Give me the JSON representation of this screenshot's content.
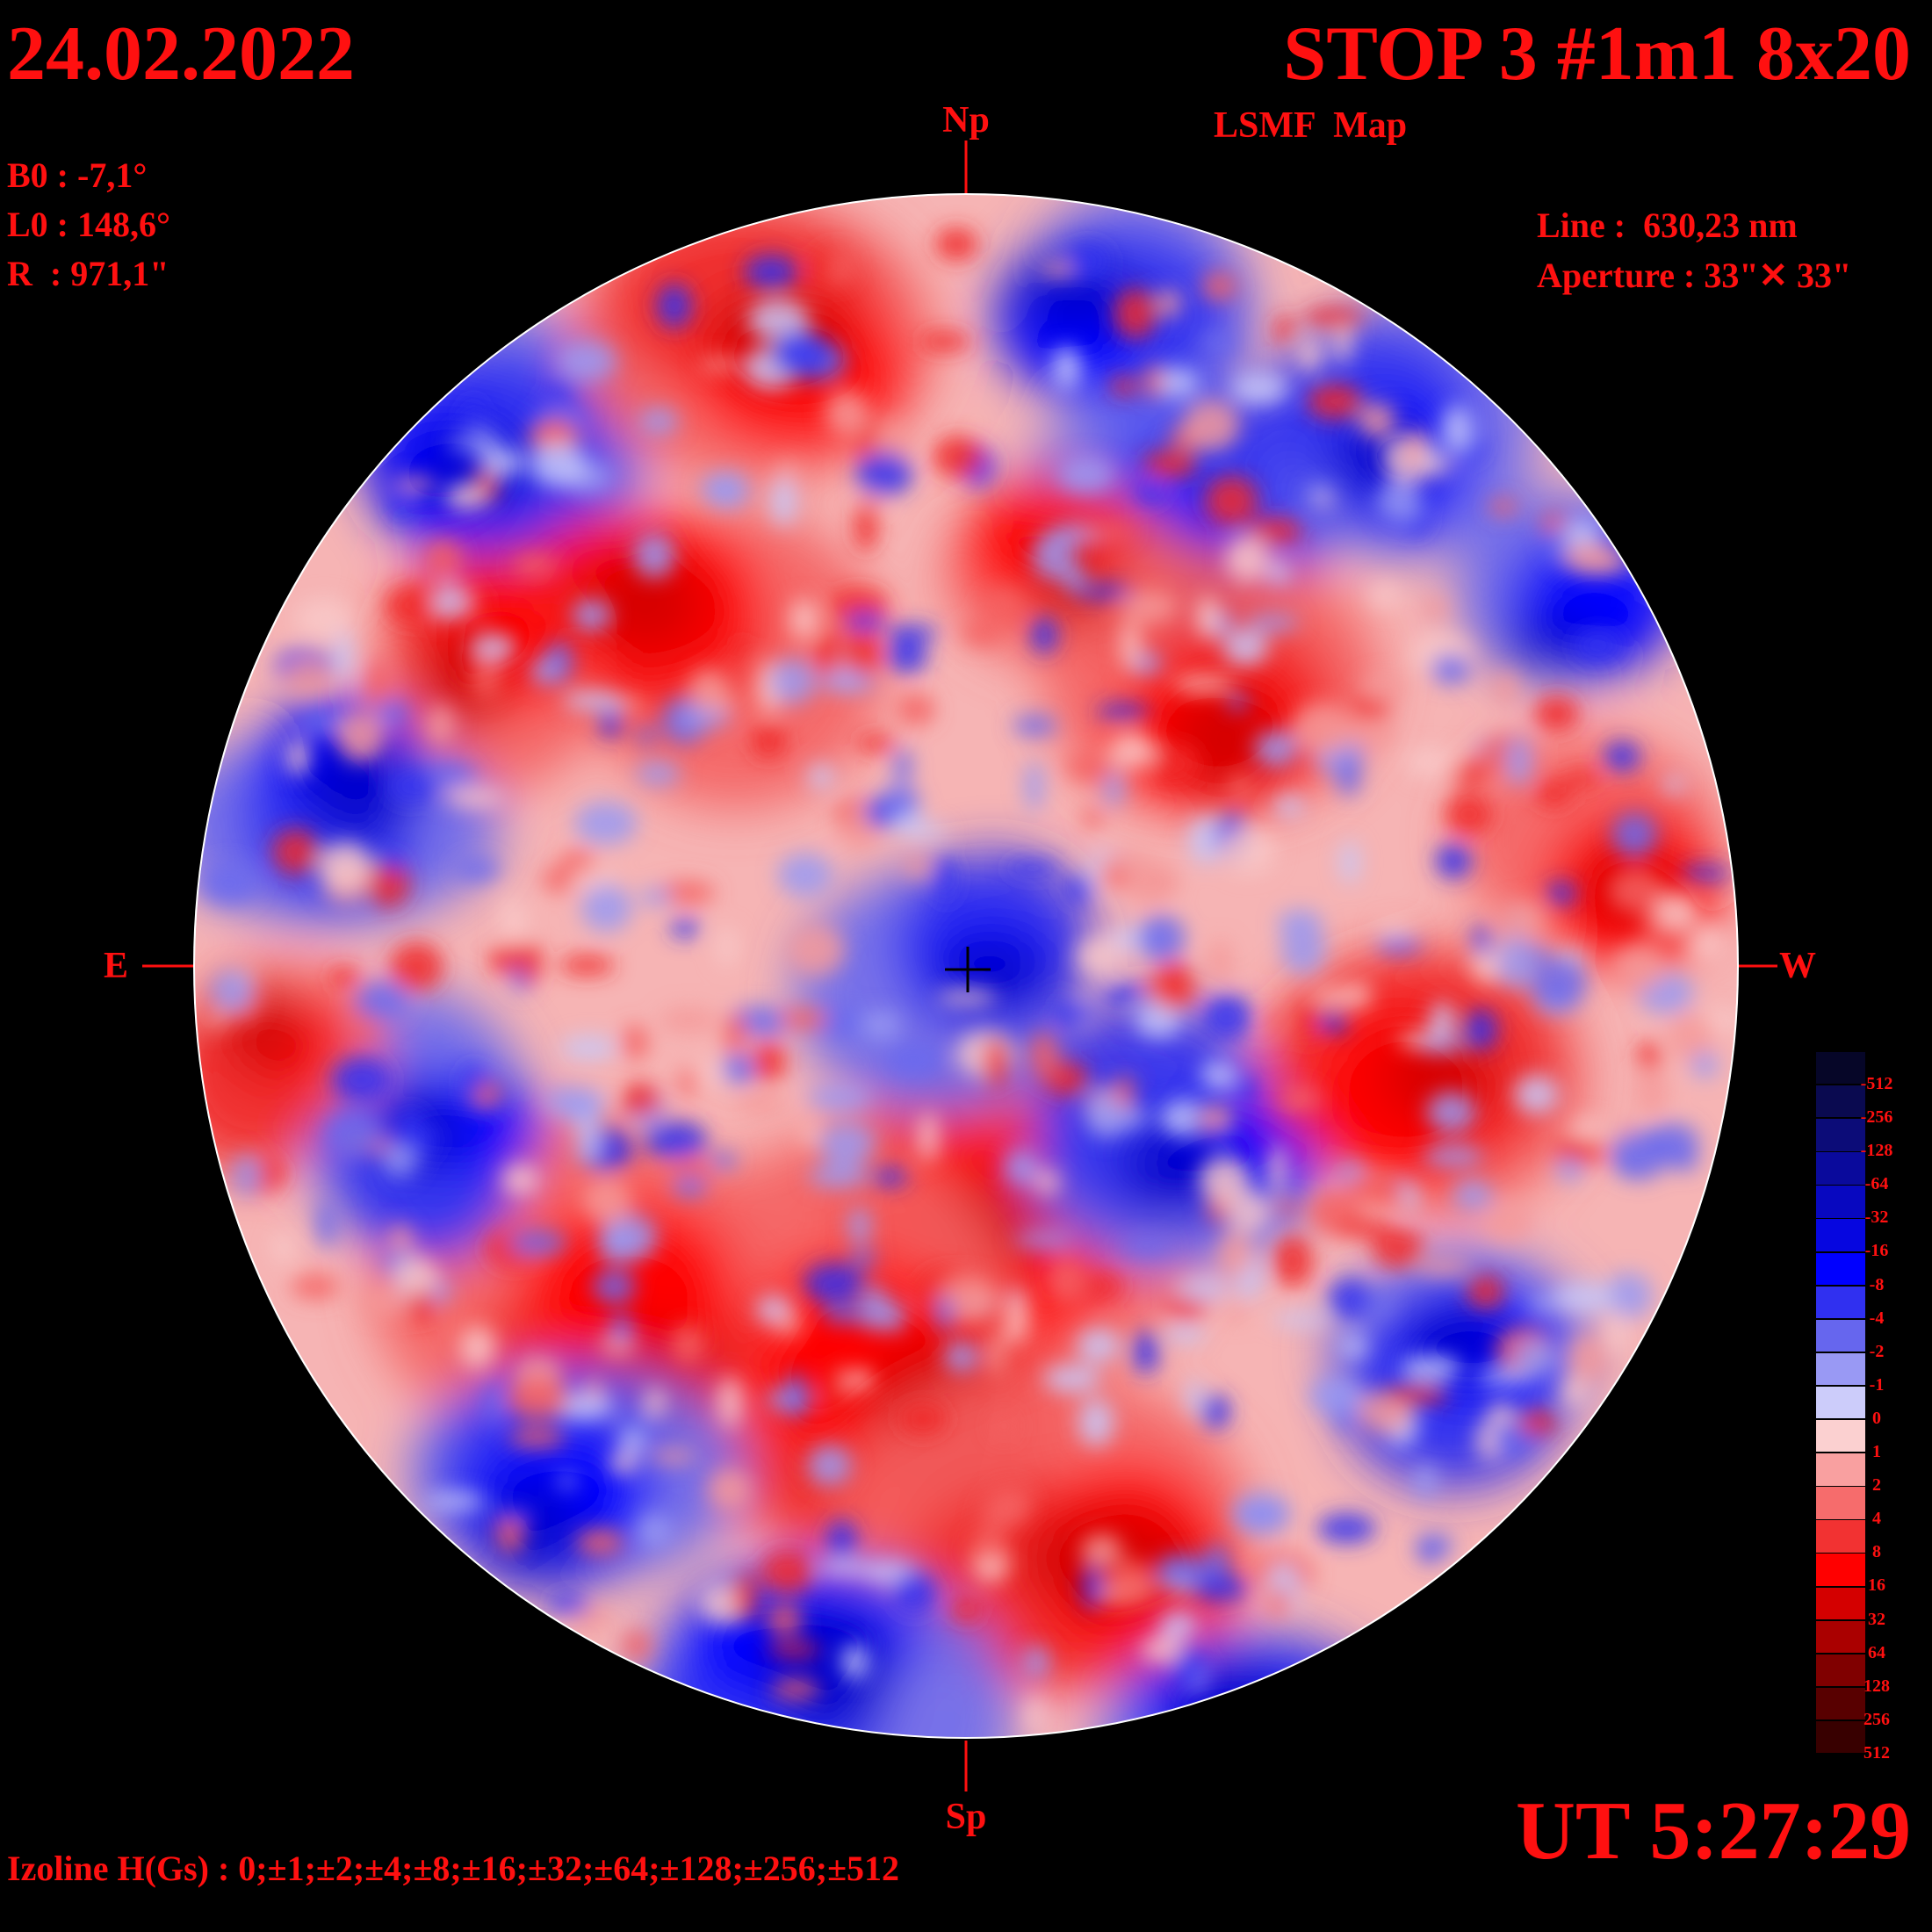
{
  "header": {
    "date": "24.02.2022",
    "title": "STOP 3 #1m1 8x20",
    "subtitle": "LSMF  Map"
  },
  "params_left": {
    "b0": "B0 : -7,1°",
    "l0": "L0 : 148,6°",
    "r": "R  : 971,1\""
  },
  "params_right": {
    "line": "Line :  630,23 nm",
    "aperture": "Aperture : 33\"✕ 33\""
  },
  "directions": {
    "north": "Np",
    "south": "Sp",
    "east": "E",
    "west": "W"
  },
  "time": "UT 5:27:29",
  "izolines": "Izoline H(Gs) : 0;±1;±2;±4;±8;±16;±32;±64;±128;±256;±512",
  "colorbar": {
    "labels": [
      "-512",
      "-256",
      "-128",
      "-64",
      "-32",
      "-16",
      "-8",
      "-4",
      "-2",
      "-1",
      "0",
      "1",
      "2",
      "4",
      "8",
      "16",
      "32",
      "64",
      "128",
      "256",
      "512"
    ],
    "colors": [
      "#060628",
      "#0a0a50",
      "#0c0c78",
      "#0a0a9c",
      "#0808c0",
      "#0606e0",
      "#0000ff",
      "#3030f0",
      "#6666ee",
      "#9999f4",
      "#ccccfa",
      "#fbd0d0",
      "#f9a0a0",
      "#f66c6c",
      "#f23232",
      "#ff0000",
      "#d40000",
      "#aa0000",
      "#800000",
      "#580000",
      "#380000"
    ]
  },
  "text_color": "#ff1010"
}
